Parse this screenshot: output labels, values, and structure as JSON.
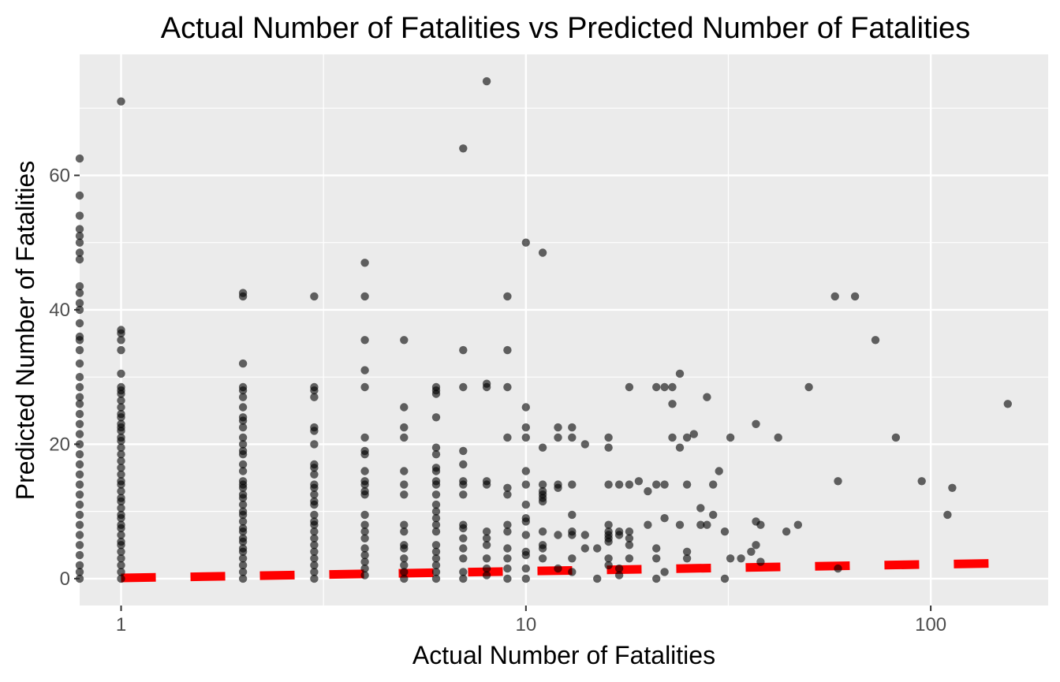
{
  "chart_data": {
    "type": "scatter",
    "title": "Actual Number of Fatalities vs Predicted Number of Fatalities",
    "xlabel": "Actual Number of Fatalities",
    "ylabel": "Predicted Number of Fatalities",
    "x_scale": "log10",
    "xlim": [
      0.79,
      195
    ],
    "ylim": [
      -4,
      78
    ],
    "x_ticks": [
      1,
      10,
      100
    ],
    "x_tick_labels": [
      "1",
      "10",
      "100"
    ],
    "y_ticks": [
      0,
      20,
      40,
      60
    ],
    "y_tick_labels": [
      "0",
      "20",
      "40",
      "60"
    ],
    "grid": true,
    "panel_background": "#ebebeb",
    "grid_color": "#ffffff",
    "point_color": "#000000",
    "point_opacity": 0.6,
    "trend_line_color": "#ff0000",
    "trend_line_style": "dashed",
    "trend_line": [
      [
        1,
        0.1
      ],
      [
        150,
        2.3
      ]
    ],
    "points": [
      [
        0.79,
        62.5
      ],
      [
        0.79,
        57
      ],
      [
        0.79,
        54
      ],
      [
        0.79,
        52
      ],
      [
        0.79,
        51
      ],
      [
        0.79,
        50
      ],
      [
        0.79,
        48.5
      ],
      [
        0.79,
        47.5
      ],
      [
        0.79,
        43.5
      ],
      [
        0.79,
        42.5
      ],
      [
        0.79,
        41
      ],
      [
        0.79,
        40
      ],
      [
        0.79,
        38
      ],
      [
        0.79,
        36
      ],
      [
        0.79,
        35.5
      ],
      [
        0.79,
        34
      ],
      [
        0.79,
        32
      ],
      [
        0.79,
        30
      ],
      [
        0.79,
        28.5
      ],
      [
        0.79,
        27
      ],
      [
        0.79,
        26
      ],
      [
        0.79,
        24.5
      ],
      [
        0.79,
        23
      ],
      [
        0.79,
        21.5
      ],
      [
        0.79,
        20
      ],
      [
        0.79,
        18.5
      ],
      [
        0.79,
        17
      ],
      [
        0.79,
        15.5
      ],
      [
        0.79,
        14
      ],
      [
        0.79,
        12.5
      ],
      [
        0.79,
        11
      ],
      [
        0.79,
        9.5
      ],
      [
        0.79,
        8
      ],
      [
        0.79,
        6.5
      ],
      [
        0.79,
        5
      ],
      [
        0.79,
        3.5
      ],
      [
        0.79,
        2
      ],
      [
        0.79,
        1
      ],
      [
        0.79,
        0
      ],
      [
        1,
        71
      ],
      [
        1,
        37
      ],
      [
        1,
        36.5
      ],
      [
        1,
        35.5
      ],
      [
        1,
        34
      ],
      [
        1,
        30.5
      ],
      [
        1,
        28.5
      ],
      [
        1,
        28
      ],
      [
        1,
        27.5
      ],
      [
        1,
        26.5
      ],
      [
        1,
        25.5
      ],
      [
        1,
        24.5
      ],
      [
        1,
        24
      ],
      [
        1,
        23
      ],
      [
        1,
        22.5
      ],
      [
        1,
        22
      ],
      [
        1,
        21
      ],
      [
        1,
        20.5
      ],
      [
        1,
        19.5
      ],
      [
        1,
        18.5
      ],
      [
        1,
        17.5
      ],
      [
        1,
        16.5
      ],
      [
        1,
        15.5
      ],
      [
        1,
        14.5
      ],
      [
        1,
        14
      ],
      [
        1,
        13
      ],
      [
        1,
        12
      ],
      [
        1,
        11.5
      ],
      [
        1,
        10.5
      ],
      [
        1,
        9.5
      ],
      [
        1,
        9
      ],
      [
        1,
        8
      ],
      [
        1,
        7.5
      ],
      [
        1,
        6.5
      ],
      [
        1,
        5.5
      ],
      [
        1,
        5
      ],
      [
        1,
        4
      ],
      [
        1,
        3
      ],
      [
        1,
        2
      ],
      [
        1,
        1
      ],
      [
        1,
        0
      ],
      [
        2,
        42.5
      ],
      [
        2,
        42
      ],
      [
        2,
        32
      ],
      [
        2,
        28.5
      ],
      [
        2,
        28
      ],
      [
        2,
        27
      ],
      [
        2,
        25.5
      ],
      [
        2,
        24
      ],
      [
        2,
        23.5
      ],
      [
        2,
        22.5
      ],
      [
        2,
        21
      ],
      [
        2,
        20
      ],
      [
        2,
        19
      ],
      [
        2,
        18.5
      ],
      [
        2,
        17
      ],
      [
        2,
        16
      ],
      [
        2,
        14.5
      ],
      [
        2,
        14
      ],
      [
        2,
        13.5
      ],
      [
        2,
        12.5
      ],
      [
        2,
        12
      ],
      [
        2,
        11
      ],
      [
        2,
        10
      ],
      [
        2,
        9.5
      ],
      [
        2,
        8.5
      ],
      [
        2,
        7.5
      ],
      [
        2,
        7
      ],
      [
        2,
        6
      ],
      [
        2,
        5.5
      ],
      [
        2,
        4.5
      ],
      [
        2,
        4
      ],
      [
        2,
        3
      ],
      [
        2,
        2
      ],
      [
        2,
        1
      ],
      [
        2,
        0
      ],
      [
        3,
        42
      ],
      [
        3,
        28.5
      ],
      [
        3,
        28
      ],
      [
        3,
        27
      ],
      [
        3,
        22.5
      ],
      [
        3,
        22
      ],
      [
        3,
        20
      ],
      [
        3,
        17
      ],
      [
        3,
        16.5
      ],
      [
        3,
        15.5
      ],
      [
        3,
        14
      ],
      [
        3,
        13.5
      ],
      [
        3,
        12.5
      ],
      [
        3,
        11.5
      ],
      [
        3,
        11
      ],
      [
        3,
        9.5
      ],
      [
        3,
        8.5
      ],
      [
        3,
        8
      ],
      [
        3,
        7
      ],
      [
        3,
        6
      ],
      [
        3,
        5
      ],
      [
        3,
        4
      ],
      [
        3,
        3
      ],
      [
        3,
        2
      ],
      [
        3,
        1
      ],
      [
        3,
        0
      ],
      [
        4,
        47
      ],
      [
        4,
        42
      ],
      [
        4,
        35.5
      ],
      [
        4,
        31
      ],
      [
        4,
        28.5
      ],
      [
        4,
        21
      ],
      [
        4,
        19
      ],
      [
        4,
        18.5
      ],
      [
        4,
        16
      ],
      [
        4,
        14.5
      ],
      [
        4,
        14
      ],
      [
        4,
        13
      ],
      [
        4,
        12.5
      ],
      [
        4,
        9.5
      ],
      [
        4,
        8
      ],
      [
        4,
        7
      ],
      [
        4,
        6
      ],
      [
        4,
        4.5
      ],
      [
        4,
        3.5
      ],
      [
        4,
        2.5
      ],
      [
        4,
        1.5
      ],
      [
        4,
        0.5
      ],
      [
        5,
        35.5
      ],
      [
        5,
        25.5
      ],
      [
        5,
        22.5
      ],
      [
        5,
        21
      ],
      [
        5,
        16
      ],
      [
        5,
        14
      ],
      [
        5,
        12.5
      ],
      [
        5,
        8
      ],
      [
        5,
        7
      ],
      [
        5,
        5
      ],
      [
        5,
        4.5
      ],
      [
        5,
        3
      ],
      [
        5,
        2
      ],
      [
        5,
        1
      ],
      [
        5,
        0
      ],
      [
        6,
        28.5
      ],
      [
        6,
        28
      ],
      [
        6,
        27.5
      ],
      [
        6,
        24
      ],
      [
        6,
        19.5
      ],
      [
        6,
        18.5
      ],
      [
        6,
        16.5
      ],
      [
        6,
        16
      ],
      [
        6,
        14.5
      ],
      [
        6,
        14
      ],
      [
        6,
        12.5
      ],
      [
        6,
        11
      ],
      [
        6,
        10
      ],
      [
        6,
        9
      ],
      [
        6,
        8
      ],
      [
        6,
        7
      ],
      [
        6,
        5
      ],
      [
        6,
        4
      ],
      [
        6,
        3
      ],
      [
        6,
        2
      ],
      [
        6,
        1
      ],
      [
        6,
        0
      ],
      [
        7,
        64
      ],
      [
        7,
        34
      ],
      [
        7,
        28.5
      ],
      [
        7,
        19
      ],
      [
        7,
        17
      ],
      [
        7,
        14.5
      ],
      [
        7,
        14
      ],
      [
        7,
        12.5
      ],
      [
        7,
        8
      ],
      [
        7,
        7.5
      ],
      [
        7,
        6
      ],
      [
        7,
        4.5
      ],
      [
        7,
        3
      ],
      [
        7,
        1
      ],
      [
        7,
        0
      ],
      [
        8,
        74
      ],
      [
        8,
        29
      ],
      [
        8,
        28.5
      ],
      [
        8,
        14.5
      ],
      [
        8,
        14
      ],
      [
        8,
        7
      ],
      [
        8,
        6
      ],
      [
        8,
        5
      ],
      [
        8,
        3
      ],
      [
        8,
        1.5
      ],
      [
        8,
        0.5
      ],
      [
        9,
        42
      ],
      [
        9,
        34
      ],
      [
        9,
        28.5
      ],
      [
        9,
        21
      ],
      [
        9,
        13.5
      ],
      [
        9,
        12.5
      ],
      [
        9,
        8
      ],
      [
        9,
        7
      ],
      [
        9,
        4.5
      ],
      [
        9,
        3
      ],
      [
        9,
        1.5
      ],
      [
        9,
        0
      ],
      [
        10,
        50
      ],
      [
        10,
        25.5
      ],
      [
        10,
        22.5
      ],
      [
        10,
        21
      ],
      [
        10,
        16
      ],
      [
        10,
        14
      ],
      [
        10,
        11
      ],
      [
        10,
        9
      ],
      [
        10,
        8.5
      ],
      [
        10,
        6.5
      ],
      [
        10,
        4
      ],
      [
        10,
        3.5
      ],
      [
        10,
        1.5
      ],
      [
        10,
        0
      ],
      [
        11,
        48.5
      ],
      [
        11,
        19.5
      ],
      [
        11,
        14
      ],
      [
        11,
        13
      ],
      [
        11,
        12.5
      ],
      [
        11,
        12
      ],
      [
        11,
        11.5
      ],
      [
        11,
        7
      ],
      [
        11,
        5
      ],
      [
        11,
        4.5
      ],
      [
        11,
        3
      ],
      [
        12,
        22.5
      ],
      [
        12,
        21
      ],
      [
        12,
        14
      ],
      [
        12,
        13.5
      ],
      [
        12,
        6.5
      ],
      [
        12,
        1.5
      ],
      [
        13,
        22.5
      ],
      [
        13,
        21
      ],
      [
        13,
        14
      ],
      [
        13,
        9.5
      ],
      [
        13,
        7
      ],
      [
        13,
        6.5
      ],
      [
        13,
        3
      ],
      [
        13,
        1
      ],
      [
        14,
        20
      ],
      [
        14,
        6.5
      ],
      [
        14,
        4.5
      ],
      [
        15,
        4.5
      ],
      [
        15,
        0
      ],
      [
        16,
        21
      ],
      [
        16,
        19.5
      ],
      [
        16,
        14
      ],
      [
        16,
        8
      ],
      [
        16,
        7
      ],
      [
        16,
        6.5
      ],
      [
        16,
        6
      ],
      [
        16,
        5.5
      ],
      [
        16,
        3
      ],
      [
        16,
        2
      ],
      [
        17,
        14
      ],
      [
        17,
        7
      ],
      [
        17,
        6.5
      ],
      [
        17,
        1.5
      ],
      [
        17,
        0.5
      ],
      [
        18,
        28.5
      ],
      [
        18,
        14
      ],
      [
        18,
        7
      ],
      [
        18,
        6
      ],
      [
        18,
        5
      ],
      [
        18,
        3
      ],
      [
        19,
        14.5
      ],
      [
        20,
        13
      ],
      [
        20,
        8
      ],
      [
        21,
        28.5
      ],
      [
        21,
        14
      ],
      [
        21,
        4.5
      ],
      [
        21,
        3
      ],
      [
        21,
        0
      ],
      [
        22,
        28.5
      ],
      [
        22,
        14
      ],
      [
        22,
        9
      ],
      [
        22,
        1
      ],
      [
        23,
        28.5
      ],
      [
        23,
        26
      ],
      [
        23,
        21
      ],
      [
        24,
        30.5
      ],
      [
        24,
        19.5
      ],
      [
        24,
        8
      ],
      [
        25,
        21
      ],
      [
        25,
        14
      ],
      [
        25,
        4
      ],
      [
        25,
        3
      ],
      [
        26,
        21.5
      ],
      [
        27,
        10.5
      ],
      [
        27,
        8
      ],
      [
        28,
        27
      ],
      [
        28,
        8
      ],
      [
        29,
        14
      ],
      [
        29,
        9.5
      ],
      [
        30,
        16
      ],
      [
        31,
        7
      ],
      [
        31,
        0
      ],
      [
        32,
        21
      ],
      [
        32,
        3
      ],
      [
        34,
        3
      ],
      [
        36,
        4
      ],
      [
        37,
        23
      ],
      [
        37,
        8.5
      ],
      [
        37,
        5
      ],
      [
        38,
        2.5
      ],
      [
        38,
        8
      ],
      [
        42,
        21
      ],
      [
        44,
        7
      ],
      [
        47,
        8
      ],
      [
        50,
        28.5
      ],
      [
        58,
        42
      ],
      [
        59,
        14.5
      ],
      [
        59,
        1.5
      ],
      [
        65,
        42
      ],
      [
        73,
        35.5
      ],
      [
        82,
        21
      ],
      [
        95,
        14.5
      ],
      [
        110,
        9.5
      ],
      [
        113,
        13.5
      ],
      [
        155,
        26
      ]
    ]
  }
}
